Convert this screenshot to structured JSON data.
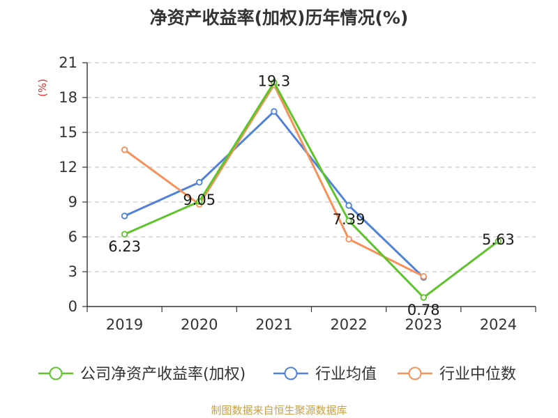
{
  "chart_data": {
    "type": "line",
    "title": "净资产收益率(加权)历年情况(%)",
    "ylabel": "(%)",
    "xlabel": "",
    "ylim": [
      0,
      21
    ],
    "yticks": [
      0,
      3,
      6,
      9,
      12,
      15,
      18,
      21
    ],
    "categories": [
      "2019",
      "2020",
      "2021",
      "2022",
      "2023",
      "2024"
    ],
    "grid": true,
    "legend_position": "bottom",
    "series": [
      {
        "name": "公司净资产收益率(加权)",
        "color": "#5dc42a",
        "values": [
          6.23,
          9.05,
          19.3,
          7.39,
          0.78,
          5.63
        ],
        "labels": [
          "6.23",
          "9.05",
          "19.3",
          "7.39",
          "0.78",
          "5.63"
        ]
      },
      {
        "name": "行业均值",
        "color": "#4f82d8",
        "values": [
          7.8,
          10.7,
          16.8,
          8.7,
          2.5,
          null
        ]
      },
      {
        "name": "行业中位数",
        "color": "#f5915a",
        "values": [
          13.5,
          8.8,
          19.1,
          5.8,
          2.6,
          null
        ]
      }
    ]
  },
  "footer": {
    "source": "制图数据来自恒生聚源数据库"
  }
}
